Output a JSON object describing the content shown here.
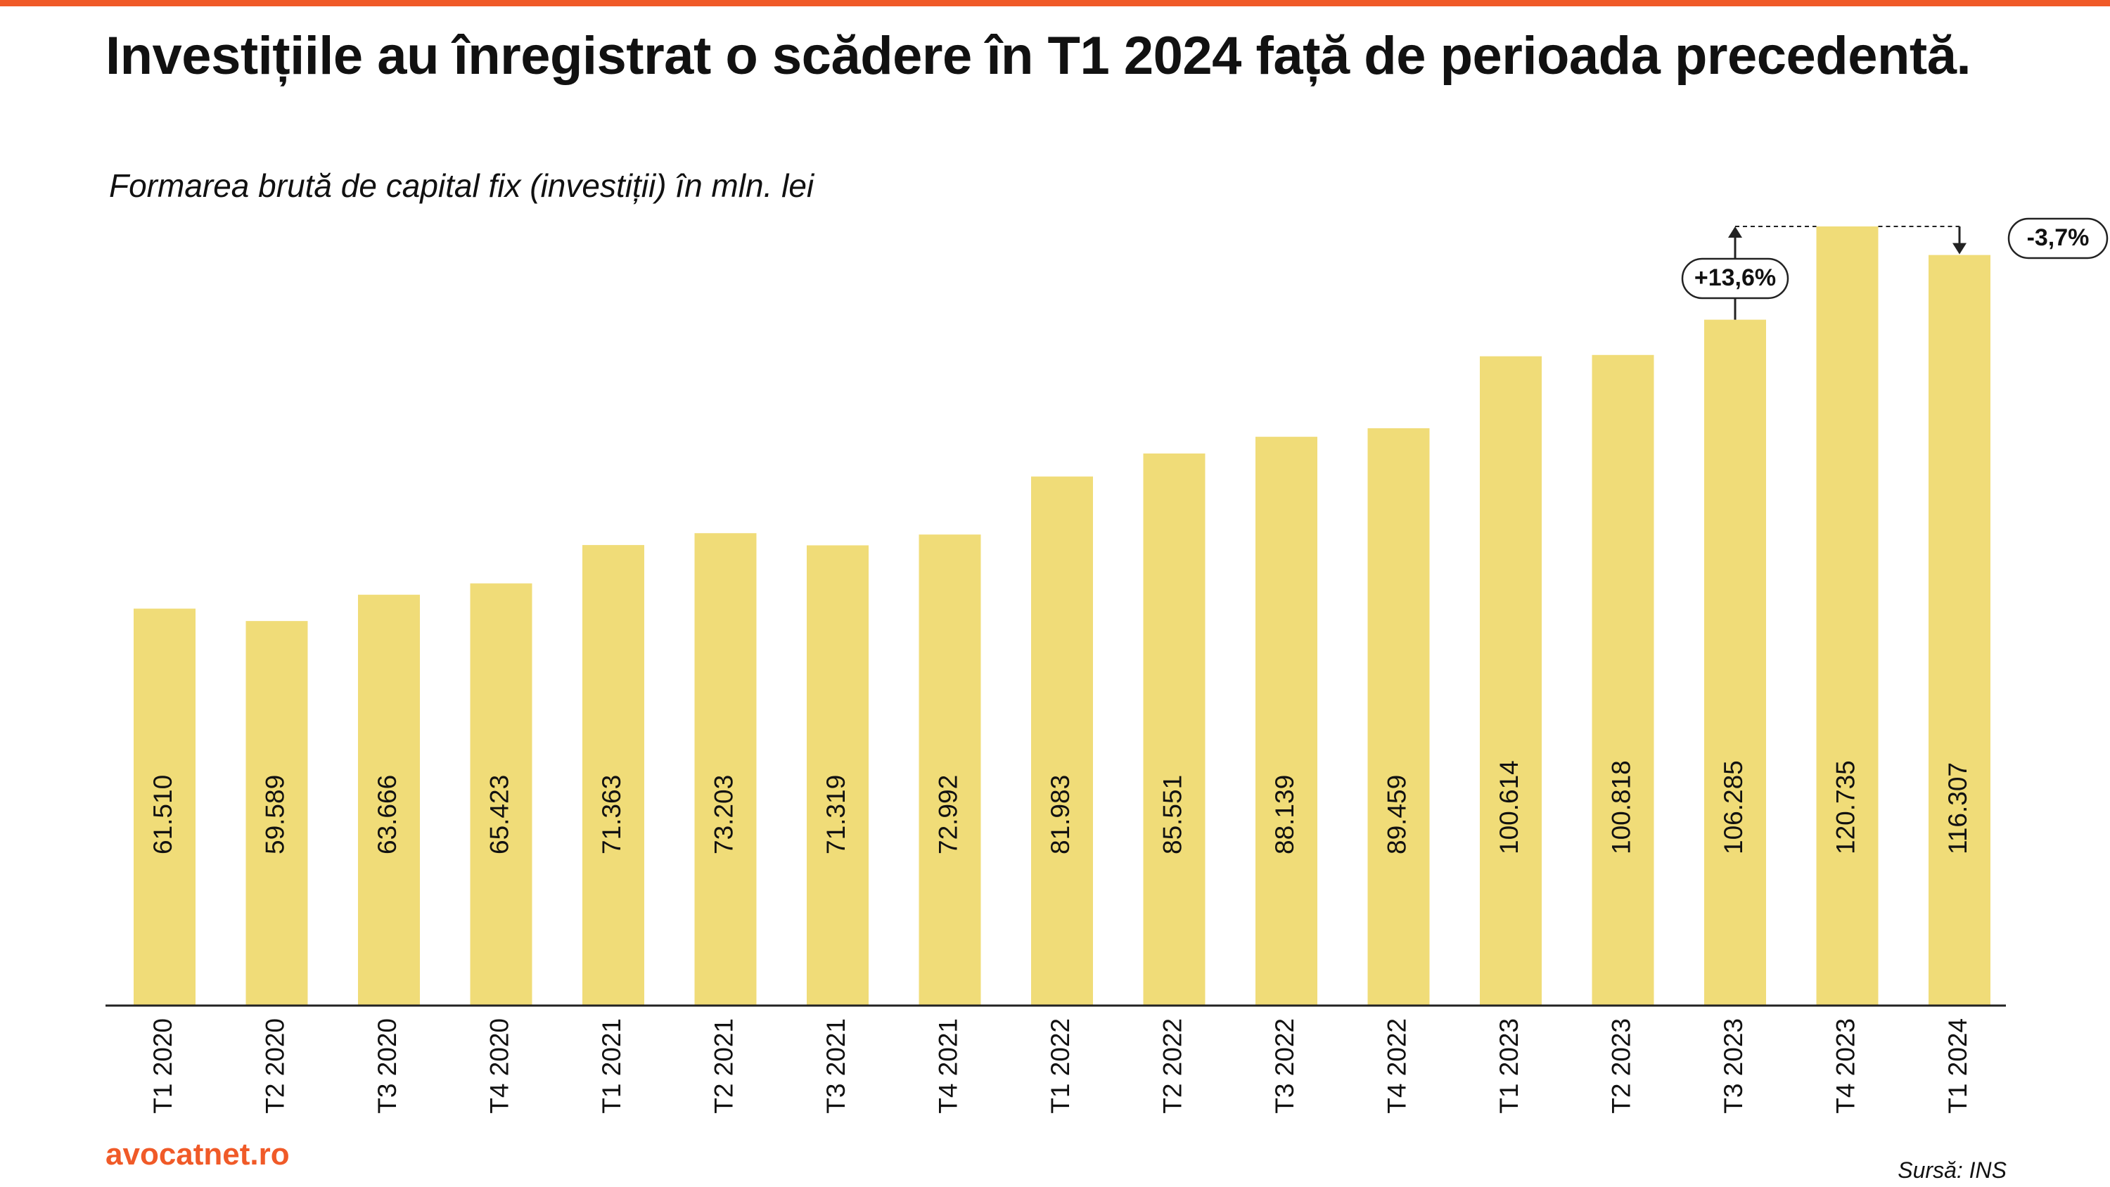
{
  "colors": {
    "accent": "#f05a28",
    "bar": "#f0dc78",
    "text": "#111111",
    "axis": "#222222"
  },
  "title": "Investițiile au înregistrat o scădere în T1 2024 față de perioada precedentă.",
  "subtitle": "Formarea brută de capital fix (investiții) în mln. lei",
  "brand": "avocatnet.ro",
  "source": "Sursă: INS",
  "chart_data": {
    "type": "bar",
    "title": "Investițiile au înregistrat o scădere în T1 2024 față de perioada precedentă.",
    "subtitle": "Formarea brută de capital fix (investiții) în mln. lei",
    "xlabel": "",
    "ylabel": "",
    "ylim": [
      0,
      122000
    ],
    "grid": false,
    "legend": "none",
    "categories": [
      "T1 2020",
      "T2 2020",
      "T3 2020",
      "T4 2020",
      "T1 2021",
      "T2 2021",
      "T3 2021",
      "T4 2021",
      "T1 2022",
      "T2 2022",
      "T3 2022",
      "T4 2022",
      "T1 2023",
      "T2 2023",
      "T3 2023",
      "T4 2023",
      "T1 2024"
    ],
    "values": [
      61510,
      59589,
      63666,
      65423,
      71363,
      73203,
      71319,
      72992,
      81983,
      85551,
      88139,
      89459,
      100614,
      100818,
      106285,
      120735,
      116307
    ],
    "value_labels": [
      "61.510",
      "59.589",
      "63.666",
      "65.423",
      "71.363",
      "73.203",
      "71.319",
      "72.992",
      "81.983",
      "85.551",
      "88.139",
      "89.459",
      "100.614",
      "100.818",
      "106.285",
      "120.735",
      "116.307"
    ],
    "annotations": [
      {
        "from": "T3 2023",
        "to": "T4 2023",
        "label": "+13,6%",
        "direction": "up"
      },
      {
        "from": "T4 2023",
        "to": "T1 2024",
        "label": "-3,7%",
        "direction": "down"
      }
    ]
  }
}
